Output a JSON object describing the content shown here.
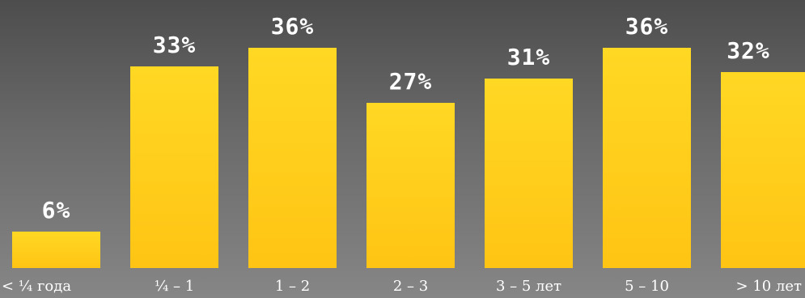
{
  "chart_data": {
    "type": "bar",
    "categories": [
      "< ¼ года",
      "¼ – 1",
      "1 – 2",
      "2 – 3",
      "3 – 5 лет",
      "5 – 10",
      "> 10 лет"
    ],
    "values": [
      6,
      33,
      36,
      27,
      31,
      36,
      32
    ],
    "value_labels": [
      "6%",
      "33%",
      "36%",
      "27%",
      "31%",
      "36%",
      "32%"
    ],
    "title": "",
    "xlabel": "",
    "ylabel": "",
    "ylim": [
      0,
      36
    ],
    "grid": false,
    "colors": {
      "bar_top": "#ffd824",
      "bar_bottom": "#ffc414",
      "text": "#ffffff"
    }
  }
}
